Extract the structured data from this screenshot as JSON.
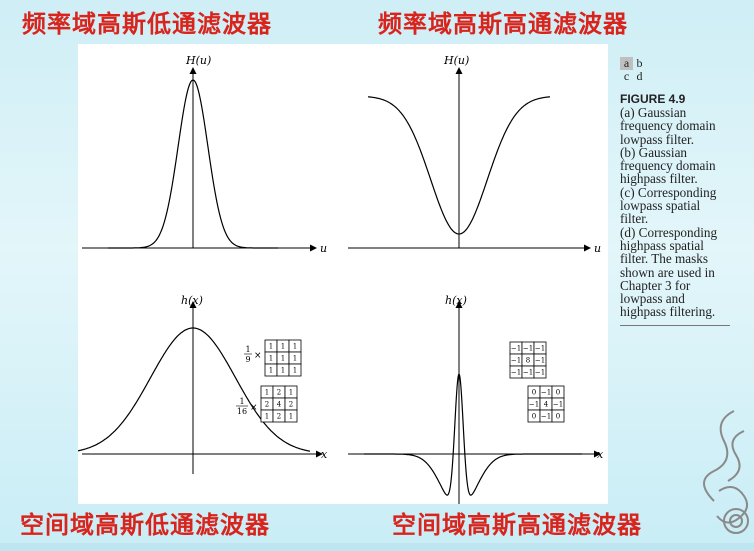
{
  "headings": {
    "top_left": "频率域高斯低通滤波器",
    "top_right": "频率域高斯高通滤波器",
    "bottom_left": "空间域高斯低通滤波器",
    "bottom_right": "空间域高斯高通滤波器"
  },
  "plots": {
    "a": {
      "ylabel": "H(u)",
      "xlabel": "u"
    },
    "b": {
      "ylabel": "H(u)",
      "xlabel": "u"
    },
    "c": {
      "ylabel": "h(x)",
      "xlabel": "x"
    },
    "d": {
      "ylabel": "h(x)",
      "xlabel": "x"
    }
  },
  "masks": {
    "lowpass_box": {
      "scale_num": "1",
      "scale_den": "9",
      "times": "×",
      "cells": [
        "1",
        "1",
        "1",
        "1",
        "1",
        "1",
        "1",
        "1",
        "1"
      ]
    },
    "lowpass_weighted": {
      "scale_num": "1",
      "scale_den": "16",
      "times": "×",
      "cells": [
        "1",
        "2",
        "1",
        "2",
        "4",
        "2",
        "1",
        "2",
        "1"
      ]
    },
    "highpass_a": {
      "cells": [
        "−1",
        "−1",
        "−1",
        "−1",
        "8",
        "−1",
        "−1",
        "−1",
        "−1"
      ]
    },
    "highpass_b": {
      "cells": [
        "0",
        "−1",
        "0",
        "−1",
        "4",
        "−1",
        "0",
        "−1",
        "0"
      ]
    }
  },
  "caption": {
    "subfig_labels": [
      "a",
      "b",
      "c",
      "d"
    ],
    "figure_label": "FIGURE 4.9",
    "text_lines": [
      "(a) Gaussian",
      "frequency domain",
      "lowpass filter.",
      "(b) Gaussian",
      "frequency domain",
      "highpass filter.",
      "(c) Corresponding",
      "lowpass spatial",
      "filter.",
      "(d) Corresponding",
      "highpass spatial",
      "filter. The masks",
      "shown are used in",
      "Chapter 3 for",
      "lowpass and",
      "highpass filtering."
    ]
  },
  "colors": {
    "heading": "#d8241c",
    "background": "#cfeef6",
    "curve": "#000000"
  }
}
